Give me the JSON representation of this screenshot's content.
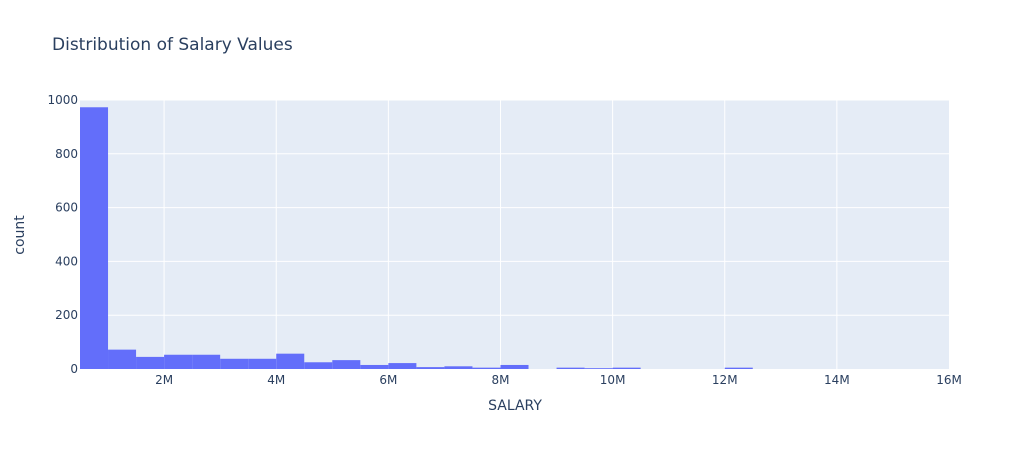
{
  "chart_data": {
    "type": "bar",
    "title": "Distribution of Salary Values",
    "xlabel": "SALARY",
    "ylabel": "count",
    "bin_width": 500000,
    "bins_start": [
      500000,
      1000000,
      1500000,
      2000000,
      2500000,
      3000000,
      3500000,
      4000000,
      4500000,
      5000000,
      5500000,
      6000000,
      6500000,
      7000000,
      7500000,
      8000000,
      8500000,
      9000000,
      9500000,
      10000000,
      10500000,
      11000000,
      11500000,
      12000000,
      12500000
    ],
    "values": [
      973,
      72,
      45,
      53,
      53,
      38,
      38,
      57,
      25,
      33,
      15,
      22,
      7,
      10,
      5,
      15,
      0,
      5,
      3,
      5,
      0,
      0,
      0,
      5,
      0
    ],
    "xlim": [
      500000,
      16000000
    ],
    "ylim": [
      0,
      1000
    ],
    "x_ticks": [
      {
        "value": 2000000,
        "label": "2M"
      },
      {
        "value": 4000000,
        "label": "4M"
      },
      {
        "value": 6000000,
        "label": "6M"
      },
      {
        "value": 8000000,
        "label": "8M"
      },
      {
        "value": 10000000,
        "label": "10M"
      },
      {
        "value": 12000000,
        "label": "12M"
      },
      {
        "value": 14000000,
        "label": "14M"
      },
      {
        "value": 16000000,
        "label": "16M"
      }
    ],
    "y_ticks": [
      {
        "value": 0,
        "label": "0"
      },
      {
        "value": 200,
        "label": "200"
      },
      {
        "value": 400,
        "label": "400"
      },
      {
        "value": 600,
        "label": "600"
      },
      {
        "value": 800,
        "label": "800"
      },
      {
        "value": 1000,
        "label": "1000"
      }
    ],
    "grid": true,
    "colors": {
      "bar": "#636efa",
      "plot_bg": "#e5ecf6",
      "grid": "#ffffff",
      "text": "#2a3f5f"
    }
  }
}
